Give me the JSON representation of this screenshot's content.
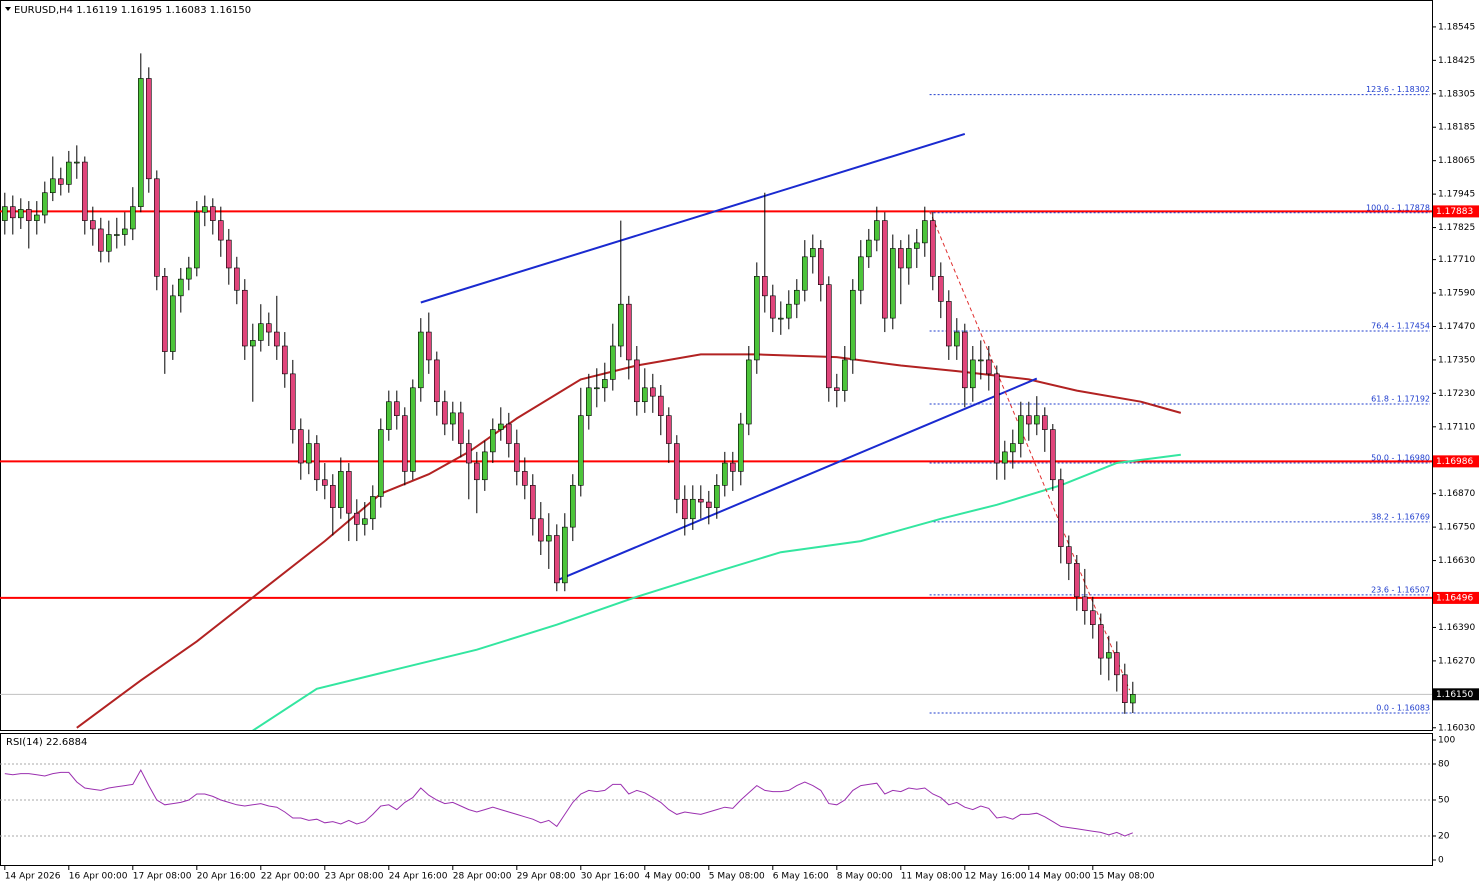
{
  "chart_data": {
    "type": "candlestick",
    "header": "EURUSD,H4  1.16119 1.16195 1.16083 1.16150",
    "bull_color": "#4cc43a",
    "bear_color": "#e0457b",
    "xlim": [
      -0.6,
      178.4
    ],
    "ylim": [
      1.16022,
      1.18638
    ],
    "yticks": [
      1.18545,
      1.18425,
      1.18305,
      1.18185,
      1.18065,
      1.17945,
      1.17825,
      {
        "value": 1.1771,
        "label": "1.17710"
      },
      {
        "value": 1.1759,
        "label": "1.17590"
      },
      {
        "value": 1.1747,
        "label": "1.17470"
      },
      {
        "value": 1.1735,
        "label": "1.17350"
      },
      {
        "value": 1.1723,
        "label": "1.17230"
      },
      {
        "value": 1.1711,
        "label": "1.17110"
      },
      {
        "value": 1.1687,
        "label": "1.16870"
      },
      {
        "value": 1.1675,
        "label": "1.16750"
      },
      {
        "value": 1.1663,
        "label": "1.16630"
      },
      {
        "value": 1.1639,
        "label": "1.16390"
      },
      {
        "value": 1.1627,
        "label": "1.16270"
      },
      {
        "value": 1.1603,
        "label": "1.16030"
      }
    ],
    "xticks": [
      {
        "value": 0,
        "label": "14 Apr 2026"
      },
      {
        "value": 8,
        "label": "16 Apr 00:00"
      },
      {
        "value": 16,
        "label": "17 Apr 08:00"
      },
      {
        "value": 24,
        "label": "20 Apr 16:00"
      },
      {
        "value": 32,
        "label": "22 Apr 00:00"
      },
      {
        "value": 40,
        "label": "23 Apr 08:00"
      },
      {
        "value": 48,
        "label": "24 Apr 16:00"
      },
      {
        "value": 56,
        "label": "28 Apr 00:00"
      },
      {
        "value": 64,
        "label": "29 Apr 08:00"
      },
      {
        "value": 72,
        "label": "30 Apr 16:00"
      },
      {
        "value": 80,
        "label": "4 May 00:00"
      },
      {
        "value": 88,
        "label": "5 May 08:00"
      },
      {
        "value": 96,
        "label": "6 May 16:00"
      },
      {
        "value": 104,
        "label": "8 May 00:00"
      },
      {
        "value": 112,
        "label": "11 May 08:00"
      },
      {
        "value": 120,
        "label": "12 May 16:00"
      },
      {
        "value": 128,
        "label": "14 May 00:00"
      },
      {
        "value": 136,
        "label": "15 May 08:00"
      }
    ],
    "candles": [
      [
        1.1785,
        1.1795,
        1.178,
        1.179
      ],
      [
        1.179,
        1.1794,
        1.178,
        1.1786
      ],
      [
        1.1786,
        1.1793,
        1.1782,
        1.1789
      ],
      [
        1.1789,
        1.1792,
        1.1775,
        1.1785
      ],
      [
        1.1785,
        1.1792,
        1.178,
        1.1787
      ],
      [
        1.1787,
        1.1799,
        1.1784,
        1.1795
      ],
      [
        1.1795,
        1.1808,
        1.1792,
        1.18
      ],
      [
        1.18,
        1.1804,
        1.1794,
        1.1798
      ],
      [
        1.1798,
        1.181,
        1.1795,
        1.1806
      ],
      [
        1.1806,
        1.1812,
        1.18,
        1.1806
      ],
      [
        1.1806,
        1.1808,
        1.178,
        1.1785
      ],
      [
        1.1785,
        1.179,
        1.1776,
        1.1782
      ],
      [
        1.1782,
        1.1786,
        1.177,
        1.1774
      ],
      [
        1.1774,
        1.1785,
        1.177,
        1.178
      ],
      [
        1.178,
        1.1786,
        1.1775,
        1.178
      ],
      [
        1.178,
        1.1788,
        1.1776,
        1.1782
      ],
      [
        1.1782,
        1.1797,
        1.1778,
        1.179
      ],
      [
        1.179,
        1.1845,
        1.1788,
        1.1836
      ],
      [
        1.1836,
        1.184,
        1.1795,
        1.18
      ],
      [
        1.18,
        1.1803,
        1.176,
        1.1765
      ],
      [
        1.1765,
        1.1768,
        1.173,
        1.1738
      ],
      [
        1.1738,
        1.1762,
        1.1735,
        1.1758
      ],
      [
        1.1758,
        1.1768,
        1.1752,
        1.1764
      ],
      [
        1.1764,
        1.1772,
        1.176,
        1.1768
      ],
      [
        1.1768,
        1.1792,
        1.1765,
        1.1788
      ],
      [
        1.1788,
        1.1794,
        1.1783,
        1.179
      ],
      [
        1.179,
        1.1793,
        1.178,
        1.1785
      ],
      [
        1.1785,
        1.179,
        1.1772,
        1.1778
      ],
      [
        1.1778,
        1.1782,
        1.1762,
        1.1768
      ],
      [
        1.1768,
        1.1772,
        1.1755,
        1.176
      ],
      [
        1.176,
        1.1764,
        1.1735,
        1.174
      ],
      [
        1.174,
        1.1748,
        1.172,
        1.1742
      ],
      [
        1.1742,
        1.1755,
        1.1738,
        1.1748
      ],
      [
        1.1748,
        1.1752,
        1.174,
        1.1745
      ],
      [
        1.1745,
        1.1758,
        1.1735,
        1.174
      ],
      [
        1.174,
        1.1745,
        1.1725,
        1.173
      ],
      [
        1.173,
        1.1735,
        1.1705,
        1.171
      ],
      [
        1.171,
        1.1714,
        1.1692,
        1.1698
      ],
      [
        1.1698,
        1.171,
        1.1694,
        1.1705
      ],
      [
        1.1705,
        1.1708,
        1.1688,
        1.1692
      ],
      [
        1.1692,
        1.1698,
        1.1685,
        1.169
      ],
      [
        1.169,
        1.1694,
        1.1672,
        1.1682
      ],
      [
        1.1682,
        1.17,
        1.1678,
        1.1695
      ],
      [
        1.1695,
        1.1698,
        1.167,
        1.168
      ],
      [
        1.168,
        1.1685,
        1.167,
        1.1676
      ],
      [
        1.1676,
        1.1684,
        1.1672,
        1.1678
      ],
      [
        1.1678,
        1.169,
        1.1674,
        1.1686
      ],
      [
        1.1686,
        1.1714,
        1.1682,
        1.171
      ],
      [
        1.171,
        1.1724,
        1.1706,
        1.172
      ],
      [
        1.172,
        1.1724,
        1.171,
        1.1715
      ],
      [
        1.1715,
        1.1718,
        1.169,
        1.1695
      ],
      [
        1.1695,
        1.1728,
        1.1692,
        1.1725
      ],
      [
        1.1725,
        1.175,
        1.172,
        1.1745
      ],
      [
        1.1745,
        1.1752,
        1.173,
        1.1735
      ],
      [
        1.1735,
        1.1738,
        1.1715,
        1.172
      ],
      [
        1.172,
        1.1724,
        1.1708,
        1.1712
      ],
      [
        1.1712,
        1.172,
        1.1706,
        1.1716
      ],
      [
        1.1716,
        1.172,
        1.17,
        1.1705
      ],
      [
        1.1705,
        1.171,
        1.1685,
        1.1698
      ],
      [
        1.1698,
        1.1702,
        1.168,
        1.1692
      ],
      [
        1.1692,
        1.1706,
        1.1688,
        1.1702
      ],
      [
        1.1702,
        1.1714,
        1.1698,
        1.171
      ],
      [
        1.171,
        1.1718,
        1.1706,
        1.1712
      ],
      [
        1.1712,
        1.1716,
        1.17,
        1.1705
      ],
      [
        1.1705,
        1.171,
        1.169,
        1.1695
      ],
      [
        1.1695,
        1.17,
        1.1685,
        1.169
      ],
      [
        1.169,
        1.1694,
        1.1672,
        1.1678
      ],
      [
        1.1678,
        1.1684,
        1.1665,
        1.167
      ],
      [
        1.167,
        1.168,
        1.166,
        1.1672
      ],
      [
        1.1672,
        1.1676,
        1.1652,
        1.1655
      ],
      [
        1.1655,
        1.168,
        1.1652,
        1.1675
      ],
      [
        1.1675,
        1.1694,
        1.167,
        1.169
      ],
      [
        1.169,
        1.1725,
        1.1686,
        1.1715
      ],
      [
        1.1715,
        1.173,
        1.171,
        1.1725
      ],
      [
        1.1725,
        1.1732,
        1.1718,
        1.1725
      ],
      [
        1.1725,
        1.1734,
        1.172,
        1.1728
      ],
      [
        1.1728,
        1.1748,
        1.1724,
        1.174
      ],
      [
        1.174,
        1.1785,
        1.1736,
        1.1755
      ],
      [
        1.1755,
        1.1758,
        1.1728,
        1.1735
      ],
      [
        1.1735,
        1.174,
        1.1715,
        1.172
      ],
      [
        1.172,
        1.1732,
        1.1716,
        1.1725
      ],
      [
        1.1725,
        1.173,
        1.1716,
        1.1722
      ],
      [
        1.1722,
        1.1726,
        1.1708,
        1.1715
      ],
      [
        1.1715,
        1.1718,
        1.1698,
        1.1705
      ],
      [
        1.1705,
        1.1708,
        1.168,
        1.1685
      ],
      [
        1.1685,
        1.169,
        1.1672,
        1.1678
      ],
      [
        1.1678,
        1.169,
        1.1674,
        1.1685
      ],
      [
        1.1685,
        1.169,
        1.1678,
        1.1684
      ],
      [
        1.1684,
        1.1688,
        1.1676,
        1.1682
      ],
      [
        1.1682,
        1.1694,
        1.1678,
        1.169
      ],
      [
        1.169,
        1.1702,
        1.1686,
        1.1698
      ],
      [
        1.1698,
        1.1702,
        1.1688,
        1.1695
      ],
      [
        1.1695,
        1.1716,
        1.169,
        1.1712
      ],
      [
        1.1712,
        1.174,
        1.1708,
        1.1735
      ],
      [
        1.1735,
        1.177,
        1.173,
        1.1765
      ],
      [
        1.1765,
        1.1795,
        1.1752,
        1.1758
      ],
      [
        1.1758,
        1.1762,
        1.1745,
        1.175
      ],
      [
        1.175,
        1.1756,
        1.1744,
        1.175
      ],
      [
        1.175,
        1.176,
        1.1746,
        1.1755
      ],
      [
        1.1755,
        1.1764,
        1.175,
        1.176
      ],
      [
        1.176,
        1.1778,
        1.1756,
        1.1772
      ],
      [
        1.1772,
        1.178,
        1.1766,
        1.1775
      ],
      [
        1.1775,
        1.1778,
        1.1756,
        1.1762
      ],
      [
        1.1762,
        1.1765,
        1.172,
        1.1725
      ],
      [
        1.1725,
        1.173,
        1.1718,
        1.1724
      ],
      [
        1.1724,
        1.174,
        1.172,
        1.1735
      ],
      [
        1.1735,
        1.1764,
        1.173,
        1.176
      ],
      [
        1.176,
        1.1778,
        1.1755,
        1.1772
      ],
      [
        1.1772,
        1.1782,
        1.1768,
        1.1778
      ],
      [
        1.1778,
        1.179,
        1.1774,
        1.1785
      ],
      [
        1.1785,
        1.1788,
        1.1745,
        1.175
      ],
      [
        1.175,
        1.178,
        1.1746,
        1.1775
      ],
      [
        1.1775,
        1.1778,
        1.1755,
        1.1768
      ],
      [
        1.1768,
        1.178,
        1.1762,
        1.1775
      ],
      [
        1.1775,
        1.1782,
        1.1768,
        1.1777
      ],
      [
        1.1777,
        1.179,
        1.1772,
        1.1785
      ],
      [
        1.1785,
        1.1788,
        1.176,
        1.1765
      ],
      [
        1.1765,
        1.177,
        1.175,
        1.1756
      ],
      [
        1.1756,
        1.176,
        1.1735,
        1.174
      ],
      [
        1.174,
        1.175,
        1.1735,
        1.1745
      ],
      [
        1.1745,
        1.1748,
        1.1718,
        1.1725
      ],
      [
        1.1725,
        1.174,
        1.172,
        1.1735
      ],
      [
        1.1735,
        1.1742,
        1.1728,
        1.1735
      ],
      [
        1.1735,
        1.174,
        1.1724,
        1.173
      ],
      [
        1.173,
        1.1733,
        1.1692,
        1.1698
      ],
      [
        1.1698,
        1.1706,
        1.1692,
        1.1702
      ],
      [
        1.1702,
        1.171,
        1.1696,
        1.1705
      ],
      [
        1.1705,
        1.172,
        1.17,
        1.1715
      ],
      [
        1.1715,
        1.172,
        1.1706,
        1.1712
      ],
      [
        1.1712,
        1.1722,
        1.1708,
        1.1715
      ],
      [
        1.1715,
        1.1718,
        1.1702,
        1.171
      ],
      [
        1.171,
        1.1712,
        1.1688,
        1.1692
      ],
      [
        1.1692,
        1.1696,
        1.1662,
        1.1668
      ],
      [
        1.1668,
        1.1672,
        1.1656,
        1.1662
      ],
      [
        1.1662,
        1.1665,
        1.1645,
        1.165
      ],
      [
        1.165,
        1.166,
        1.164,
        1.1645
      ],
      [
        1.1645,
        1.165,
        1.1635,
        1.164
      ],
      [
        1.164,
        1.1644,
        1.1622,
        1.1628
      ],
      [
        1.1628,
        1.1636,
        1.162,
        1.163
      ],
      [
        1.163,
        1.1634,
        1.1616,
        1.1622
      ],
      [
        1.1622,
        1.1626,
        1.1608,
        1.1612
      ],
      [
        1.16119,
        1.16195,
        1.16083,
        1.1615
      ]
    ],
    "moving_averages": [
      {
        "color": "#b22222",
        "x": [
          9,
          17,
          24,
          32,
          40,
          47,
          53,
          58,
          64,
          72,
          79,
          87,
          94,
          104,
          112,
          119,
          128,
          134,
          142,
          147
        ],
        "values": [
          1.1603,
          1.162,
          1.1634,
          1.1652,
          1.167,
          1.1687,
          1.1694,
          1.1702,
          1.1714,
          1.1728,
          1.1733,
          1.1737,
          1.1737,
          1.1736,
          1.1733,
          1.1731,
          1.1728,
          1.1724,
          1.172,
          1.1716
        ]
      },
      {
        "color": "#33e6a0",
        "x": [
          31,
          39,
          49,
          59,
          69,
          79,
          89,
          97,
          107,
          117,
          124,
          132,
          139,
          147
        ],
        "values": [
          1.1602,
          1.1617,
          1.1624,
          1.1631,
          1.164,
          1.165,
          1.1659,
          1.1666,
          1.167,
          1.1678,
          1.1683,
          1.169,
          1.1698,
          1.1701
        ]
      }
    ],
    "trendlines": [
      {
        "color": "#1a2ad0",
        "x": [
          52,
          120
        ],
        "values": [
          1.17556,
          1.18161
        ]
      },
      {
        "color": "#1a2ad0",
        "x": [
          69,
          129
        ],
        "values": [
          1.16559,
          1.17283
        ]
      },
      {
        "color": "#e03030",
        "dashed": true,
        "x": [
          115.6,
          140.6
        ],
        "values": [
          1.17886,
          1.16165
        ]
      }
    ],
    "price_lines": [
      {
        "value": 1.17883,
        "color": "#ff0000"
      },
      {
        "value": 1.16986,
        "color": "#ff0000"
      },
      {
        "value": 1.16496,
        "color": "#ff0000"
      },
      {
        "value": 1.1615,
        "label": "1.16150",
        "color": "#000000"
      }
    ],
    "fibonacci": {
      "start": 115.6,
      "color": "#1e3ccd",
      "levels": [
        {
          "value": 1.18302,
          "label": "123.6 - 1.18302"
        },
        {
          "value": 1.17878,
          "label": "100.0 - 1.17878"
        },
        {
          "value": 1.17454,
          "label": "76.4 - 1.17454"
        },
        {
          "value": 1.17192,
          "label": "61.8 - 1.17192"
        },
        {
          "value": 1.1698,
          "label": "50.0 - 1.16980"
        },
        {
          "value": 1.16769,
          "label": "38.2 - 1.16769"
        },
        {
          "value": 1.16507,
          "label": "23.6 - 1.16507"
        },
        {
          "value": 1.16083,
          "label": "0.0 - 1.16083"
        }
      ]
    },
    "rsi": {
      "label": "RSI(14) 22.6884",
      "color": "#9b30b0",
      "ylim": [
        -5,
        105
      ],
      "yticks": [
        100,
        80,
        50,
        20,
        0
      ],
      "levels": [
        80,
        50,
        20
      ],
      "values": [
        72,
        71,
        72,
        72,
        71,
        70,
        72,
        73,
        73,
        65,
        60,
        59,
        58,
        60,
        61,
        62,
        63,
        75,
        62,
        50,
        46,
        47,
        48,
        50,
        55,
        55,
        53,
        50,
        48,
        46,
        45,
        46,
        47,
        45,
        44,
        40,
        35,
        35,
        33,
        34,
        31,
        32,
        30,
        33,
        30,
        32,
        38,
        45,
        46,
        42,
        48,
        52,
        60,
        54,
        50,
        47,
        48,
        45,
        42,
        40,
        42,
        44,
        42,
        40,
        38,
        36,
        34,
        31,
        33,
        28,
        38,
        48,
        55,
        58,
        57,
        58,
        63,
        63,
        55,
        58,
        56,
        52,
        48,
        42,
        38,
        40,
        39,
        38,
        40,
        42,
        44,
        43,
        50,
        56,
        62,
        58,
        57,
        57,
        58,
        62,
        65,
        62,
        58,
        47,
        46,
        50,
        58,
        62,
        63,
        64,
        55,
        58,
        57,
        60,
        59,
        60,
        55,
        52,
        46,
        48,
        44,
        42,
        45,
        43,
        35,
        36,
        34,
        38,
        38,
        39,
        36,
        32,
        28,
        27,
        26,
        25,
        24,
        23,
        21,
        23,
        20,
        22.6884
      ]
    }
  }
}
